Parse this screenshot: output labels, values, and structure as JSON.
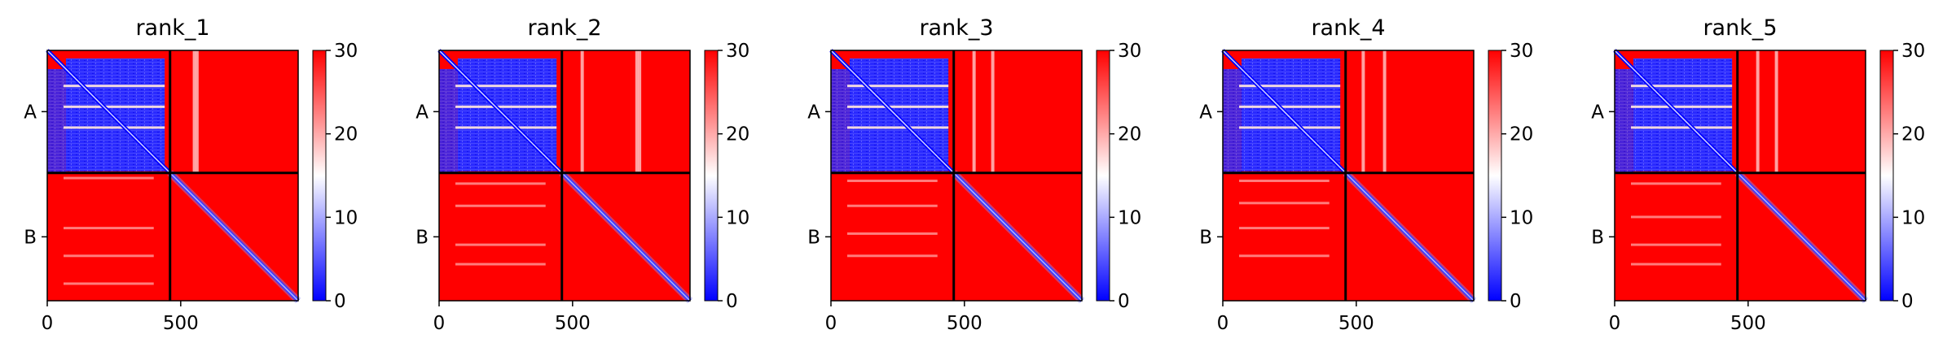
{
  "colors": {
    "low": "#0000ff",
    "mid": "#ffffff",
    "high": "#ff0000",
    "separator": "#000000"
  },
  "chart_data": [
    {
      "type": "heatmap",
      "title": "rank_1",
      "xticks": [
        0,
        500
      ],
      "yticks": [
        "A",
        "B"
      ],
      "xlim": [
        0,
        940
      ],
      "chain_break": 460,
      "colorbar": {
        "ticks": [
          0,
          10,
          20,
          30
        ],
        "range": [
          0,
          30
        ],
        "colormap": "bwr"
      },
      "stripes_top_right": [
        545,
        555
      ],
      "stripes_bottom_left": [
        20,
        200,
        300,
        400
      ]
    },
    {
      "type": "heatmap",
      "title": "rank_2",
      "xticks": [
        0,
        500
      ],
      "yticks": [
        "A",
        "B"
      ],
      "xlim": [
        0,
        940
      ],
      "chain_break": 460,
      "colorbar": {
        "ticks": [
          0,
          10,
          20,
          30
        ],
        "range": [
          0,
          30
        ],
        "colormap": "bwr"
      },
      "stripes_top_right": [
        530,
        735,
        745
      ],
      "stripes_bottom_left": [
        40,
        120,
        260,
        330
      ]
    },
    {
      "type": "heatmap",
      "title": "rank_3",
      "xticks": [
        0,
        500
      ],
      "yticks": [
        "A",
        "B"
      ],
      "xlim": [
        0,
        940
      ],
      "chain_break": 460,
      "colorbar": {
        "ticks": [
          0,
          10,
          20,
          30
        ],
        "range": [
          0,
          30
        ],
        "colormap": "bwr"
      },
      "stripes_top_right": [
        530,
        600
      ],
      "stripes_bottom_left": [
        30,
        120,
        220,
        300
      ]
    },
    {
      "type": "heatmap",
      "title": "rank_4",
      "xticks": [
        0,
        500
      ],
      "yticks": [
        "A",
        "B"
      ],
      "xlim": [
        0,
        940
      ],
      "chain_break": 460,
      "colorbar": {
        "ticks": [
          0,
          10,
          20,
          30
        ],
        "range": [
          0,
          30
        ],
        "colormap": "bwr"
      },
      "stripes_top_right": [
        520,
        600
      ],
      "stripes_bottom_left": [
        30,
        110,
        200,
        300
      ]
    },
    {
      "type": "heatmap",
      "title": "rank_5",
      "xticks": [
        0,
        500
      ],
      "yticks": [
        "A",
        "B"
      ],
      "xlim": [
        0,
        940
      ],
      "chain_break": 460,
      "colorbar": {
        "ticks": [
          0,
          10,
          20,
          30
        ],
        "range": [
          0,
          30
        ],
        "colormap": "bwr"
      },
      "stripes_top_right": [
        530,
        600
      ],
      "stripes_bottom_left": [
        40,
        160,
        260,
        330
      ]
    }
  ]
}
